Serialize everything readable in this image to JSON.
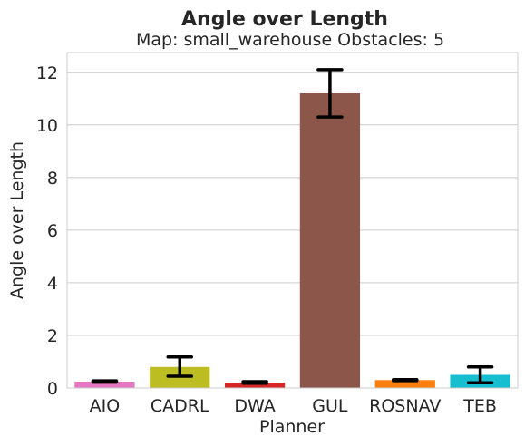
{
  "chart_data": {
    "type": "bar",
    "title": "Angle over Length",
    "subtitle": "Map: small_warehouse Obstacles: 5",
    "xlabel": "Planner",
    "ylabel": "Angle over Length",
    "ylim": [
      0,
      12.75
    ],
    "yticks": [
      0,
      2,
      4,
      6,
      8,
      10,
      12
    ],
    "grid": "horizontal",
    "categories": [
      "AIO",
      "CADRL",
      "DWA",
      "GUL",
      "ROSNAV",
      "TEB"
    ],
    "values": [
      0.24,
      0.8,
      0.2,
      11.2,
      0.3,
      0.5
    ],
    "error_low": [
      0.22,
      0.45,
      0.18,
      10.3,
      0.28,
      0.2
    ],
    "error_high": [
      0.27,
      1.18,
      0.24,
      12.1,
      0.32,
      0.8
    ],
    "colors": [
      "#e377c2",
      "#bcbd22",
      "#d62728",
      "#8c564b",
      "#ff7f0e",
      "#17becf"
    ]
  }
}
